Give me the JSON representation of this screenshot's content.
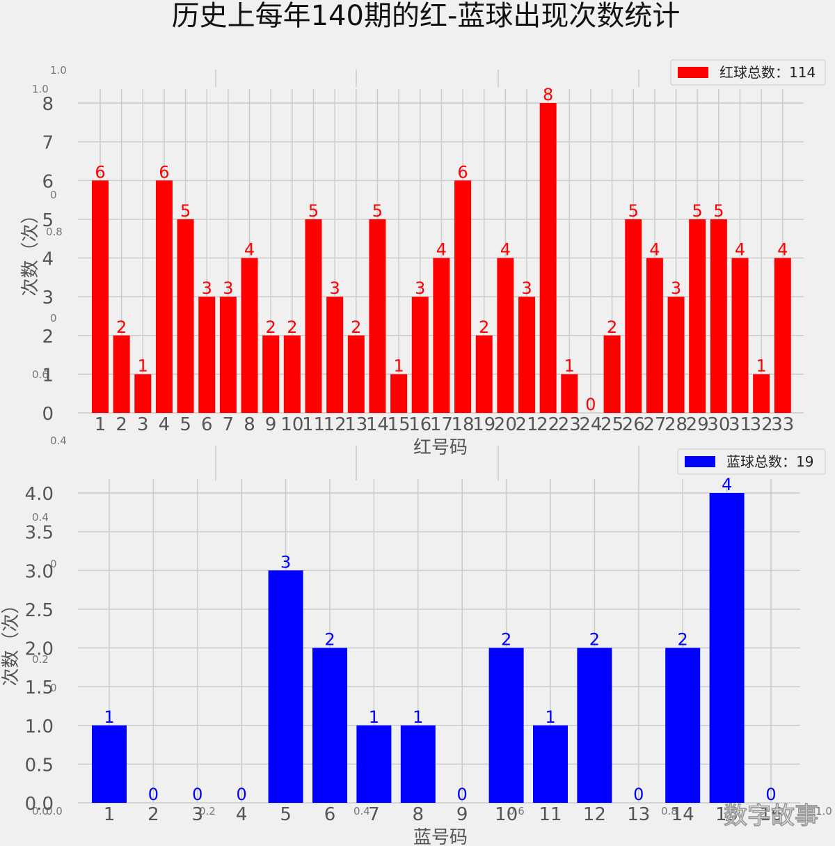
{
  "title": "历史上每年140期的红-蓝球出现次数统计",
  "watermark": "数字故事",
  "chart_data": [
    {
      "type": "bar",
      "color": "#ff0000",
      "legend": "红球总数：114",
      "legend_position": "top-right",
      "xlabel": "红号码",
      "ylabel": "次数（次）",
      "grid": true,
      "categories": [
        "1",
        "2",
        "3",
        "4",
        "5",
        "6",
        "7",
        "8",
        "9",
        "10",
        "11",
        "12",
        "13",
        "14",
        "15",
        "16",
        "17",
        "18",
        "19",
        "20",
        "21",
        "22",
        "23",
        "24",
        "25",
        "26",
        "27",
        "28",
        "29",
        "30",
        "31",
        "32",
        "33"
      ],
      "values": [
        6,
        2,
        1,
        6,
        5,
        3,
        3,
        4,
        2,
        2,
        5,
        3,
        2,
        5,
        1,
        3,
        4,
        6,
        2,
        4,
        3,
        8,
        1,
        0,
        2,
        5,
        4,
        3,
        5,
        5,
        4,
        1,
        4
      ],
      "yticks": [
        "0",
        "1",
        "2",
        "3",
        "4",
        "5",
        "6",
        "7",
        "8"
      ],
      "ylim": [
        0,
        8.4
      ]
    },
    {
      "type": "bar",
      "color": "#0000ff",
      "legend": "蓝球总数：19",
      "legend_position": "top-right",
      "xlabel": "蓝号码",
      "ylabel": "次数（次）",
      "grid": true,
      "categories": [
        "1",
        "2",
        "3",
        "4",
        "5",
        "6",
        "7",
        "8",
        "9",
        "10",
        "11",
        "12",
        "13",
        "14",
        "15",
        "16"
      ],
      "values": [
        1,
        0,
        0,
        0,
        3,
        2,
        1,
        1,
        0,
        2,
        1,
        2,
        0,
        2,
        4,
        0
      ],
      "yticks": [
        "0.0",
        "0.5",
        "1.0",
        "1.5",
        "2.0",
        "2.5",
        "3.0",
        "3.5",
        "4.0"
      ],
      "ylim": [
        0,
        4.2
      ]
    }
  ],
  "ghost_ticks": [
    "1.0",
    "1.0",
    "0",
    "0.8",
    "0",
    "0.6",
    "0.4",
    "0.4",
    "0",
    "0.2",
    "0",
    "0.0",
    "0.0",
    "0.2",
    "0.4",
    "0.6",
    "0.8",
    "1.0"
  ]
}
